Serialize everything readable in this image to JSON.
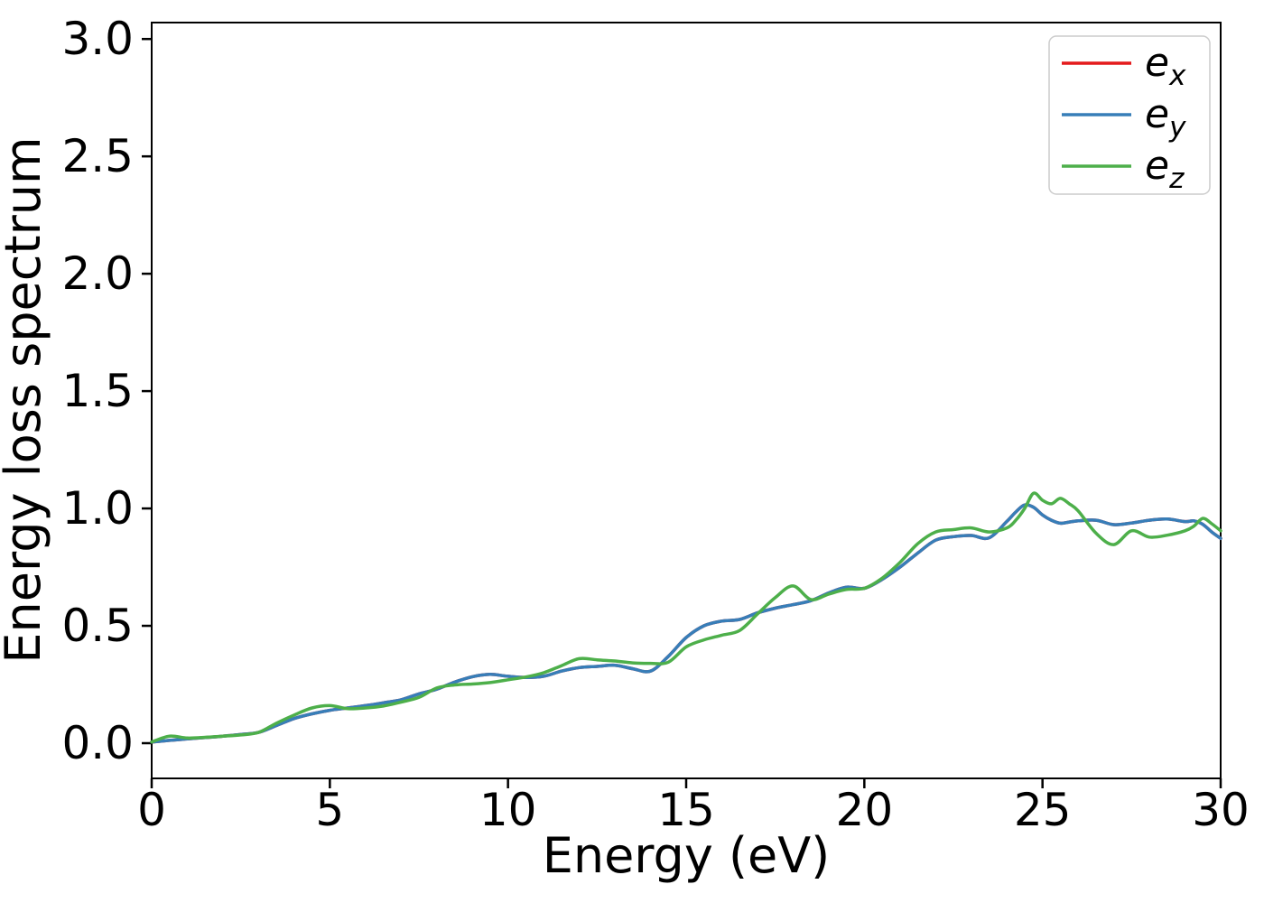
{
  "figure": {
    "background": "#ffffff",
    "spine_color": "#000000",
    "text_color": "#000000"
  },
  "chart_data": {
    "type": "line",
    "title": "",
    "xlabel": "Energy (eV)",
    "ylabel": "Energy loss spectrum",
    "xlim": [
      0,
      30
    ],
    "ylim": [
      -0.15,
      3.07
    ],
    "xticks": [
      "0",
      "5",
      "10",
      "15",
      "20",
      "25",
      "30"
    ],
    "yticks": [
      "0.0",
      "0.5",
      "1.0",
      "1.5",
      "2.0",
      "2.5",
      "3.0"
    ],
    "grid": false,
    "legend_position": "upper right",
    "legend_border_color": "#cccccc",
    "x": [
      0,
      0.5,
      1,
      1.5,
      2,
      2.5,
      3,
      3.5,
      4,
      4.5,
      5,
      5.5,
      6,
      6.5,
      7,
      7.5,
      8,
      8.5,
      9,
      9.5,
      10,
      10.5,
      11,
      11.5,
      12,
      12.5,
      13,
      13.5,
      14,
      14.5,
      15,
      15.5,
      16,
      16.5,
      17,
      17.5,
      18,
      18.5,
      19,
      19.5,
      20,
      20.5,
      21,
      21.5,
      22,
      22.5,
      23,
      23.5,
      24,
      24.25,
      24.5,
      24.75,
      25,
      25.25,
      25.5,
      25.75,
      26,
      26.5,
      27,
      27.5,
      28,
      28.5,
      29,
      29.25,
      29.5,
      29.75,
      30
    ],
    "series": [
      {
        "name": "e_x",
        "label_main": "e",
        "label_sub": "x",
        "color": "#e41a1c",
        "values": [
          0.005,
          0.012,
          0.018,
          0.024,
          0.03,
          0.037,
          0.046,
          0.075,
          0.105,
          0.125,
          0.14,
          0.15,
          0.16,
          0.172,
          0.185,
          0.21,
          0.23,
          0.26,
          0.283,
          0.293,
          0.285,
          0.28,
          0.285,
          0.307,
          0.322,
          0.327,
          0.332,
          0.317,
          0.307,
          0.37,
          0.45,
          0.5,
          0.52,
          0.527,
          0.555,
          0.575,
          0.59,
          0.607,
          0.64,
          0.665,
          0.66,
          0.698,
          0.75,
          0.81,
          0.865,
          0.88,
          0.885,
          0.875,
          0.945,
          0.985,
          1.015,
          1.005,
          0.972,
          0.95,
          0.937,
          0.942,
          0.947,
          0.95,
          0.931,
          0.938,
          0.95,
          0.955,
          0.944,
          0.947,
          0.932,
          0.9,
          0.872
        ]
      },
      {
        "name": "e_y",
        "label_main": "e",
        "label_sub": "y",
        "color": "#377eb8",
        "values": [
          0.005,
          0.012,
          0.018,
          0.024,
          0.03,
          0.037,
          0.046,
          0.075,
          0.105,
          0.125,
          0.14,
          0.15,
          0.16,
          0.172,
          0.185,
          0.21,
          0.23,
          0.26,
          0.283,
          0.293,
          0.285,
          0.28,
          0.285,
          0.307,
          0.322,
          0.327,
          0.332,
          0.317,
          0.307,
          0.37,
          0.45,
          0.5,
          0.52,
          0.527,
          0.555,
          0.575,
          0.59,
          0.607,
          0.64,
          0.665,
          0.66,
          0.698,
          0.75,
          0.81,
          0.865,
          0.88,
          0.885,
          0.875,
          0.945,
          0.985,
          1.015,
          1.005,
          0.972,
          0.95,
          0.937,
          0.942,
          0.947,
          0.95,
          0.931,
          0.938,
          0.95,
          0.955,
          0.944,
          0.947,
          0.932,
          0.9,
          0.872
        ]
      },
      {
        "name": "e_z",
        "label_main": "e",
        "label_sub": "z",
        "color": "#4daf4a",
        "values": [
          0.005,
          0.03,
          0.022,
          0.025,
          0.03,
          0.035,
          0.046,
          0.085,
          0.12,
          0.15,
          0.16,
          0.147,
          0.15,
          0.158,
          0.175,
          0.195,
          0.235,
          0.248,
          0.252,
          0.258,
          0.27,
          0.282,
          0.3,
          0.33,
          0.36,
          0.355,
          0.35,
          0.342,
          0.34,
          0.345,
          0.41,
          0.44,
          0.46,
          0.48,
          0.55,
          0.62,
          0.67,
          0.612,
          0.635,
          0.655,
          0.66,
          0.703,
          0.77,
          0.85,
          0.9,
          0.91,
          0.917,
          0.9,
          0.917,
          0.95,
          1.0,
          1.065,
          1.035,
          1.02,
          1.043,
          1.02,
          0.99,
          0.895,
          0.846,
          0.905,
          0.878,
          0.886,
          0.905,
          0.925,
          0.958,
          0.935,
          0.905
        ]
      }
    ]
  }
}
